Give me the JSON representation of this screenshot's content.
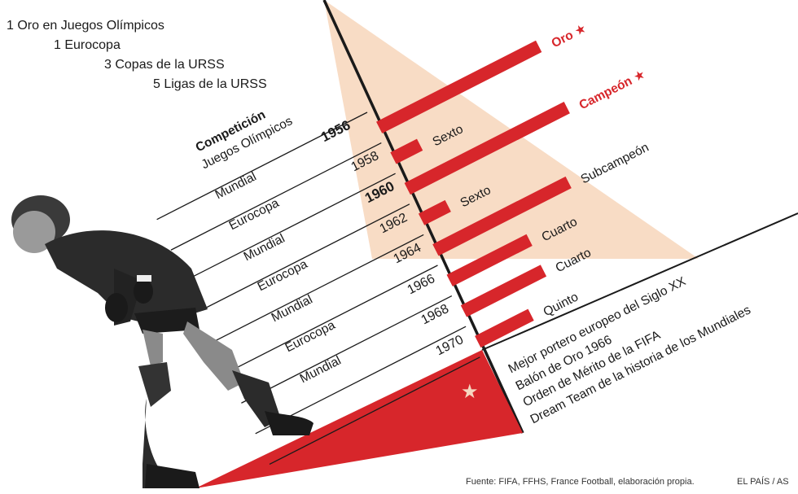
{
  "titles_summary": [
    "1 Oro en Juegos Olímpicos",
    "1 Eurocopa",
    "3 Copas de la URSS",
    "5 Ligas de la URSS"
  ],
  "table_header": {
    "competition": "Competición",
    "first_year": "1956"
  },
  "colors": {
    "accent_red": "#d7262b",
    "peach_fill": "#f8dcc5",
    "line": "#1a1a1a",
    "text": "#1a1a1a"
  },
  "chart_data": {
    "type": "bar",
    "orientation": "horizontal",
    "categories": [
      {
        "competition": "Juegos Olímpicos",
        "year": "1956",
        "bold": true
      },
      {
        "competition": "Mundial",
        "year": "1958",
        "bold": false
      },
      {
        "competition": "Eurocopa",
        "year": "1960",
        "bold": true
      },
      {
        "competition": "Mundial",
        "year": "1962",
        "bold": false
      },
      {
        "competition": "Eurocopa",
        "year": "1964",
        "bold": false
      },
      {
        "competition": "Mundial",
        "year": "1966",
        "bold": false
      },
      {
        "competition": "Eurocopa",
        "year": "1968",
        "bold": false
      },
      {
        "competition": "Mundial",
        "year": "1970",
        "bold": false
      }
    ],
    "series": [
      {
        "values": [
          1,
          6,
          1,
          6,
          2,
          4,
          4,
          5
        ]
      }
    ],
    "result_labels": [
      "Oro",
      "Sexto",
      "Campeón",
      "Sexto",
      "Subcampeón",
      "Cuarto",
      "Cuarto",
      "Quinto"
    ],
    "highlighted": [
      true,
      false,
      true,
      false,
      false,
      false,
      false,
      false
    ],
    "star_icon": "star-icon"
  },
  "honors": [
    "Mejor portero europeo del Siglo XX",
    "Balón de Oro 1966",
    "Orden de Mérito de la FIFA",
    "Dream Team de la historia de los Mundiales"
  ],
  "source": "Fuente: FIFA, FFHS, France Football, elaboración propia.",
  "credit": "EL PAÍS / AS"
}
